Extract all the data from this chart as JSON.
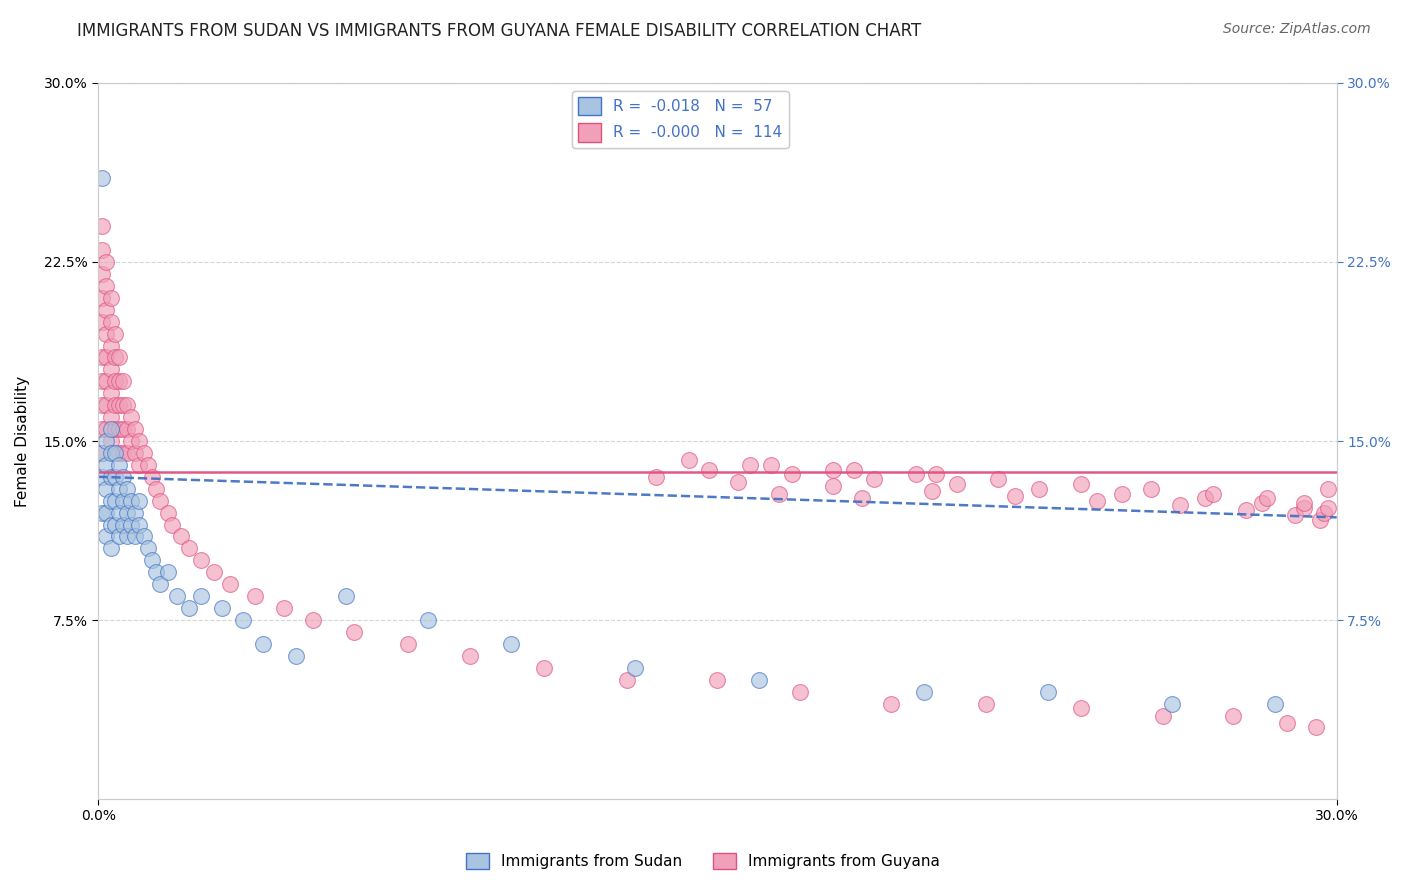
{
  "title": "IMMIGRANTS FROM SUDAN VS IMMIGRANTS FROM GUYANA FEMALE DISABILITY CORRELATION CHART",
  "source": "Source: ZipAtlas.com",
  "ylabel": "Female Disability",
  "legend_sudan_r": "R =  -0.018",
  "legend_sudan_n": "N =  57",
  "legend_guyana_r": "R =  -0.000",
  "legend_guyana_n": "N =  114",
  "sudan_color": "#a8c4e0",
  "guyana_color": "#f0a0b8",
  "sudan_line_color": "#4472c4",
  "guyana_line_color": "#e05080",
  "title_fontsize": 12,
  "axis_label_fontsize": 11,
  "tick_fontsize": 10,
  "legend_fontsize": 11,
  "source_fontsize": 10,
  "background_color": "#ffffff",
  "grid_color": "#cccccc",
  "xlim": [
    0.0,
    0.3
  ],
  "ylim": [
    0.0,
    0.3
  ],
  "sudan_scatter_x": [
    0.001,
    0.001,
    0.001,
    0.001,
    0.002,
    0.002,
    0.002,
    0.002,
    0.002,
    0.003,
    0.003,
    0.003,
    0.003,
    0.003,
    0.003,
    0.004,
    0.004,
    0.004,
    0.004,
    0.005,
    0.005,
    0.005,
    0.005,
    0.006,
    0.006,
    0.006,
    0.007,
    0.007,
    0.007,
    0.008,
    0.008,
    0.009,
    0.009,
    0.01,
    0.01,
    0.011,
    0.012,
    0.013,
    0.014,
    0.015,
    0.017,
    0.019,
    0.022,
    0.025,
    0.03,
    0.035,
    0.04,
    0.048,
    0.06,
    0.08,
    0.1,
    0.13,
    0.16,
    0.2,
    0.23,
    0.26,
    0.285
  ],
  "sudan_scatter_y": [
    0.26,
    0.145,
    0.135,
    0.12,
    0.15,
    0.14,
    0.13,
    0.12,
    0.11,
    0.155,
    0.145,
    0.135,
    0.125,
    0.115,
    0.105,
    0.145,
    0.135,
    0.125,
    0.115,
    0.14,
    0.13,
    0.12,
    0.11,
    0.135,
    0.125,
    0.115,
    0.13,
    0.12,
    0.11,
    0.125,
    0.115,
    0.12,
    0.11,
    0.125,
    0.115,
    0.11,
    0.105,
    0.1,
    0.095,
    0.09,
    0.095,
    0.085,
    0.08,
    0.085,
    0.08,
    0.075,
    0.065,
    0.06,
    0.085,
    0.075,
    0.065,
    0.055,
    0.05,
    0.045,
    0.045,
    0.04,
    0.04
  ],
  "guyana_scatter_x": [
    0.001,
    0.001,
    0.001,
    0.001,
    0.001,
    0.001,
    0.001,
    0.001,
    0.001,
    0.001,
    0.002,
    0.002,
    0.002,
    0.002,
    0.002,
    0.002,
    0.002,
    0.002,
    0.003,
    0.003,
    0.003,
    0.003,
    0.003,
    0.003,
    0.003,
    0.004,
    0.004,
    0.004,
    0.004,
    0.004,
    0.005,
    0.005,
    0.005,
    0.005,
    0.005,
    0.006,
    0.006,
    0.006,
    0.006,
    0.007,
    0.007,
    0.007,
    0.008,
    0.008,
    0.009,
    0.009,
    0.01,
    0.01,
    0.011,
    0.012,
    0.013,
    0.014,
    0.015,
    0.017,
    0.018,
    0.02,
    0.022,
    0.025,
    0.028,
    0.032,
    0.038,
    0.045,
    0.052,
    0.062,
    0.075,
    0.09,
    0.108,
    0.128,
    0.15,
    0.17,
    0.192,
    0.215,
    0.238,
    0.258,
    0.275,
    0.288,
    0.295,
    0.298,
    0.165,
    0.185,
    0.135,
    0.155,
    0.178,
    0.202,
    0.222,
    0.242,
    0.262,
    0.278,
    0.29,
    0.296,
    0.148,
    0.168,
    0.188,
    0.208,
    0.228,
    0.248,
    0.268,
    0.282,
    0.292,
    0.297,
    0.158,
    0.178,
    0.198,
    0.218,
    0.238,
    0.255,
    0.27,
    0.283,
    0.292,
    0.298,
    0.143,
    0.163,
    0.183,
    0.203
  ],
  "guyana_scatter_y": [
    0.24,
    0.23,
    0.22,
    0.21,
    0.2,
    0.185,
    0.175,
    0.165,
    0.155,
    0.145,
    0.225,
    0.215,
    0.205,
    0.195,
    0.185,
    0.175,
    0.165,
    0.155,
    0.21,
    0.2,
    0.19,
    0.18,
    0.17,
    0.16,
    0.15,
    0.195,
    0.185,
    0.175,
    0.165,
    0.155,
    0.185,
    0.175,
    0.165,
    0.155,
    0.145,
    0.175,
    0.165,
    0.155,
    0.145,
    0.165,
    0.155,
    0.145,
    0.16,
    0.15,
    0.155,
    0.145,
    0.15,
    0.14,
    0.145,
    0.14,
    0.135,
    0.13,
    0.125,
    0.12,
    0.115,
    0.11,
    0.105,
    0.1,
    0.095,
    0.09,
    0.085,
    0.08,
    0.075,
    0.07,
    0.065,
    0.06,
    0.055,
    0.05,
    0.05,
    0.045,
    0.04,
    0.04,
    0.038,
    0.035,
    0.035,
    0.032,
    0.03,
    0.13,
    0.128,
    0.126,
    0.135,
    0.133,
    0.131,
    0.129,
    0.127,
    0.125,
    0.123,
    0.121,
    0.119,
    0.117,
    0.138,
    0.136,
    0.134,
    0.132,
    0.13,
    0.128,
    0.126,
    0.124,
    0.122,
    0.12,
    0.14,
    0.138,
    0.136,
    0.134,
    0.132,
    0.13,
    0.128,
    0.126,
    0.124,
    0.122,
    0.142,
    0.14,
    0.138,
    0.136
  ],
  "sudan_trend_x": [
    0.0,
    0.3
  ],
  "sudan_trend_y": [
    0.135,
    0.118
  ],
  "guyana_trend_x": [
    0.0,
    0.3
  ],
  "guyana_trend_y": [
    0.137,
    0.137
  ]
}
